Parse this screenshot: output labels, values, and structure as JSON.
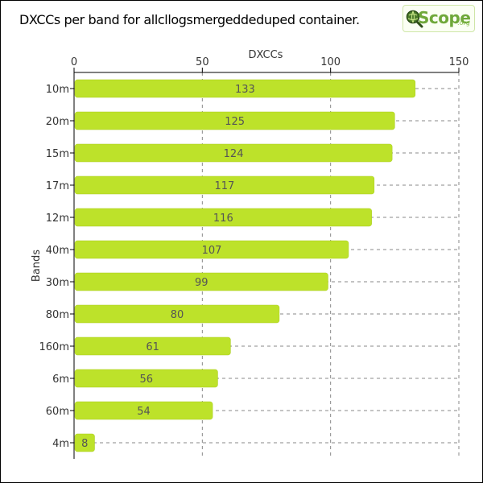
{
  "header": {
    "title": "DXCCs per band for allcllogsmergeddeduped container.",
    "logo": {
      "text": "Scope",
      "suffix": ".org"
    }
  },
  "chart_data": {
    "type": "bar",
    "orientation": "horizontal",
    "categories": [
      "10m",
      "20m",
      "15m",
      "17m",
      "12m",
      "40m",
      "30m",
      "80m",
      "160m",
      "6m",
      "60m",
      "4m"
    ],
    "values": [
      133,
      125,
      124,
      117,
      116,
      107,
      99,
      80,
      61,
      56,
      54,
      8
    ],
    "xlabel": "DXCCs",
    "ylabel": "Bands",
    "xlim": [
      0,
      150
    ],
    "xticks": [
      0,
      50,
      100,
      150
    ],
    "x_axis_position": "top",
    "grid": true,
    "bar_color": "#bde22a"
  }
}
